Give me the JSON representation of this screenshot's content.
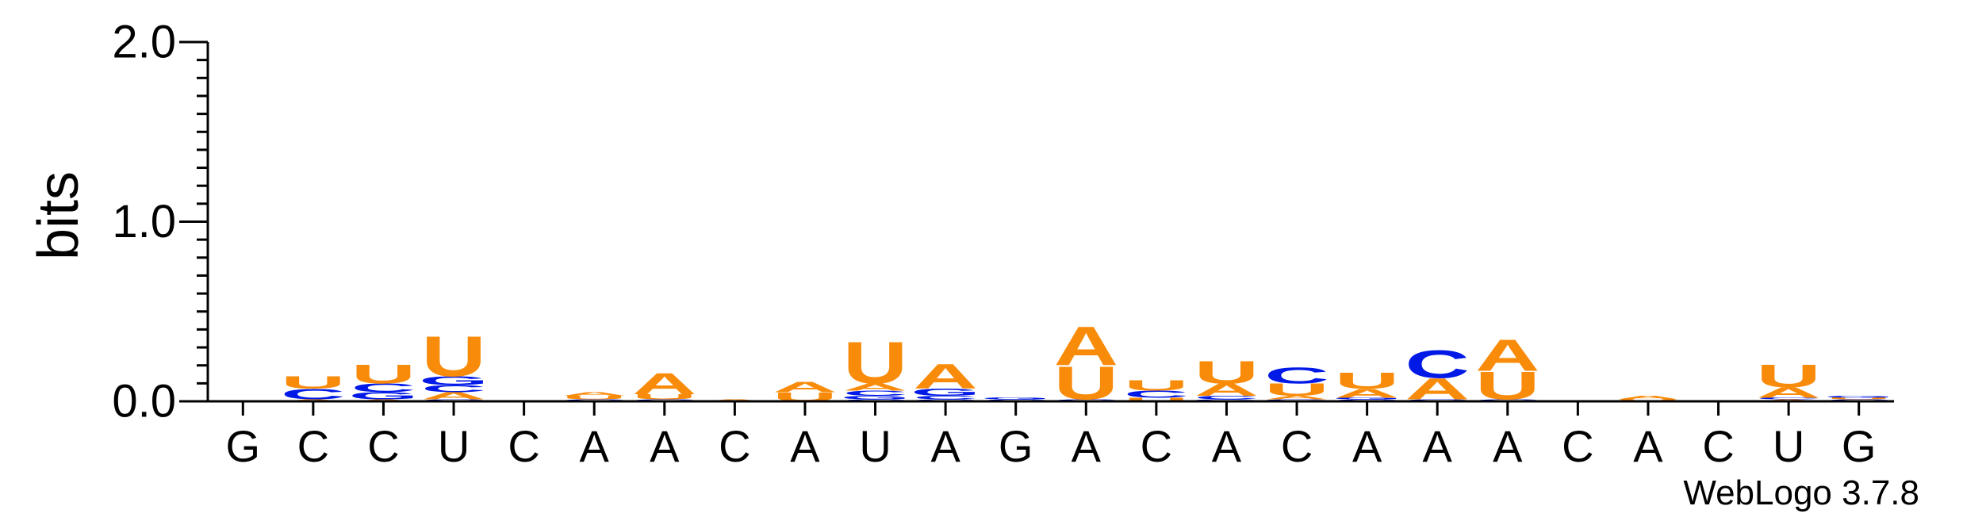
{
  "chart_data": {
    "type": "sequence-logo",
    "ylabel": "bits",
    "ylim": [
      0,
      2.0
    ],
    "yticks": [
      "0.0",
      "1.0",
      "2.0"
    ],
    "colors": {
      "A": "#f98b0a",
      "U": "#f98b0a",
      "C": "#0019e6",
      "G": "#0019e6"
    },
    "positions": [
      {
        "label": "G",
        "stack": []
      },
      {
        "label": "C",
        "stack": [
          [
            "A",
            0.01
          ],
          [
            "C",
            0.06
          ],
          [
            "U",
            0.07
          ]
        ]
      },
      {
        "label": "C",
        "stack": [
          [
            "A",
            0.01
          ],
          [
            "G",
            0.04
          ],
          [
            "C",
            0.05
          ],
          [
            "U",
            0.11
          ]
        ]
      },
      {
        "label": "U",
        "stack": [
          [
            "C",
            0.01
          ],
          [
            "A",
            0.04
          ],
          [
            "C",
            0.04
          ],
          [
            "G",
            0.05
          ],
          [
            "U",
            0.23
          ]
        ]
      },
      {
        "label": "C",
        "stack": []
      },
      {
        "label": "A",
        "stack": [
          [
            "C",
            0.01
          ],
          [
            "U",
            0.02
          ],
          [
            "A",
            0.02
          ]
        ]
      },
      {
        "label": "A",
        "stack": [
          [
            "C",
            0.01
          ],
          [
            "U",
            0.03
          ],
          [
            "A",
            0.12
          ]
        ]
      },
      {
        "label": "C",
        "stack": [
          [
            "A",
            0.01
          ]
        ]
      },
      {
        "label": "A",
        "stack": [
          [
            "U",
            0.05
          ],
          [
            "A",
            0.06
          ]
        ]
      },
      {
        "label": "U",
        "stack": [
          [
            "C",
            0.01
          ],
          [
            "G",
            0.02
          ],
          [
            "C",
            0.03
          ],
          [
            "A",
            0.04
          ],
          [
            "U",
            0.24
          ]
        ]
      },
      {
        "label": "A",
        "stack": [
          [
            "C",
            0.01
          ],
          [
            "C",
            0.02
          ],
          [
            "G",
            0.04
          ],
          [
            "A",
            0.14
          ]
        ]
      },
      {
        "label": "G",
        "stack": [
          [
            "C",
            0.01
          ],
          [
            "G",
            0.01
          ]
        ]
      },
      {
        "label": "A",
        "stack": [
          [
            "C",
            0.01
          ],
          [
            "U",
            0.19
          ],
          [
            "A",
            0.22
          ]
        ]
      },
      {
        "label": "C",
        "stack": [
          [
            "U",
            0.02
          ],
          [
            "C",
            0.04
          ],
          [
            "U",
            0.06
          ]
        ]
      },
      {
        "label": "A",
        "stack": [
          [
            "G",
            0.01
          ],
          [
            "C",
            0.02
          ],
          [
            "A",
            0.07
          ],
          [
            "U",
            0.13
          ]
        ]
      },
      {
        "label": "C",
        "stack": [
          [
            "G",
            0.01
          ],
          [
            "A",
            0.02
          ],
          [
            "U",
            0.07
          ],
          [
            "C",
            0.09
          ]
        ]
      },
      {
        "label": "A",
        "stack": [
          [
            "C",
            0.01
          ],
          [
            "G",
            0.01
          ],
          [
            "A",
            0.05
          ],
          [
            "U",
            0.09
          ]
        ]
      },
      {
        "label": "A",
        "stack": [
          [
            "C",
            0.01
          ],
          [
            "A",
            0.12
          ],
          [
            "C",
            0.16
          ]
        ]
      },
      {
        "label": "A",
        "stack": [
          [
            "C",
            0.01
          ],
          [
            "U",
            0.16
          ],
          [
            "A",
            0.18
          ]
        ]
      },
      {
        "label": "C",
        "stack": []
      },
      {
        "label": "A",
        "stack": [
          [
            "U",
            0.01
          ],
          [
            "A",
            0.02
          ]
        ]
      },
      {
        "label": "C",
        "stack": []
      },
      {
        "label": "U",
        "stack": [
          [
            "A",
            0.01
          ],
          [
            "C",
            0.01
          ],
          [
            "A",
            0.06
          ],
          [
            "U",
            0.13
          ]
        ]
      },
      {
        "label": "G",
        "stack": [
          [
            "C",
            0.01
          ],
          [
            "U",
            0.01
          ],
          [
            "G",
            0.01
          ]
        ]
      }
    ]
  },
  "footer": {
    "credit": "WebLogo 3.7.8"
  }
}
